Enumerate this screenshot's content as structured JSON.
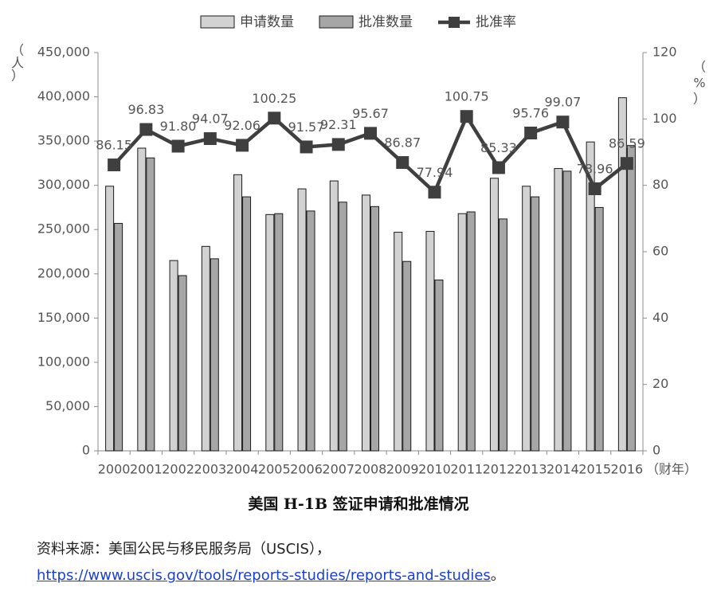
{
  "chart_data": {
    "type": "bar",
    "categories": [
      "2000",
      "2001",
      "2002",
      "2003",
      "2004",
      "2005",
      "2006",
      "2007",
      "2008",
      "2009",
      "2010",
      "2011",
      "2012",
      "2013",
      "2014",
      "2015",
      "2016"
    ],
    "series": [
      {
        "name": "申请数量",
        "kind": "bar",
        "axis": "left",
        "color": "#d2d2d2",
        "values": [
          299000,
          342000,
          215000,
          231000,
          312000,
          267000,
          296000,
          305000,
          289000,
          247000,
          248000,
          268000,
          308000,
          299000,
          319000,
          349000,
          399000
        ]
      },
      {
        "name": "批准数量",
        "kind": "bar",
        "axis": "left",
        "color": "#a6a6a6",
        "values": [
          257000,
          331000,
          198000,
          217000,
          287000,
          268000,
          271000,
          281000,
          276000,
          214000,
          193000,
          270000,
          262000,
          287000,
          316000,
          275000,
          345000
        ]
      },
      {
        "name": "批准率",
        "kind": "line",
        "axis": "right",
        "color": "#3f3f3f",
        "values": [
          86.15,
          96.83,
          91.8,
          94.07,
          92.06,
          100.25,
          91.57,
          92.31,
          95.67,
          86.87,
          77.94,
          100.75,
          85.33,
          95.76,
          99.07,
          78.96,
          86.59
        ],
        "labels": [
          "86.15",
          "96.83",
          "91.80",
          "94.07",
          "92.06",
          "100.25",
          "91.57",
          "92.31",
          "95.67",
          "86.87",
          "77.94",
          "100.75",
          "85.33",
          "95.76",
          "99.07",
          "78.96",
          "86.59"
        ]
      }
    ],
    "y_left": {
      "min": 0,
      "max": 450000,
      "ticks": [
        "0",
        "50,000",
        "100,000",
        "150,000",
        "200,000",
        "250,000",
        "300,000",
        "350,000",
        "400,000",
        "450,000"
      ],
      "unit_label": "（人）"
    },
    "y_right": {
      "min": 0,
      "max": 120,
      "ticks": [
        "0",
        "20",
        "40",
        "60",
        "80",
        "100",
        "120"
      ],
      "unit_label": "（%）"
    },
    "x_unit_label": "（财年）",
    "legend_position": "top",
    "grid": false
  },
  "caption": "美国 H-1B 签证申请和批准情况",
  "source": {
    "prefix": "资料来源：美国公民与移民服务局（USCIS），",
    "link": "https://www.uscis.gov/tools/reports-studies/reports-and-studies",
    "suffix": "。"
  }
}
